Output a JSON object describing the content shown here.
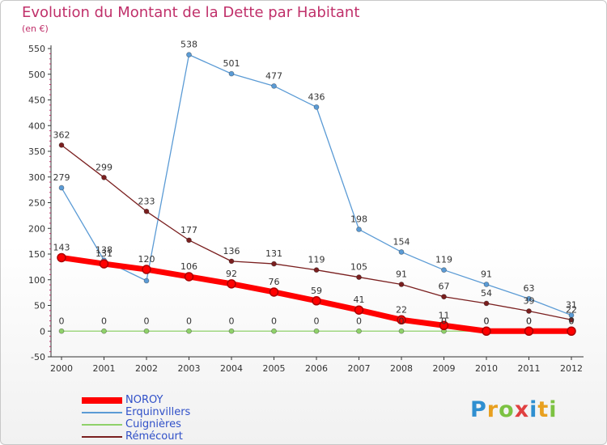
{
  "title": "Evolution du Montant de la Dette par Habitant",
  "unit_label": "(en €)",
  "brand": {
    "text": "Proxiti",
    "colors": [
      "#2f8fd0",
      "#e8a020",
      "#7cc242",
      "#e04040",
      "#2f8fd0",
      "#e8a020",
      "#7cc242"
    ]
  },
  "chart_data": {
    "type": "line",
    "x": [
      "2000",
      "2001",
      "2002",
      "2003",
      "2004",
      "2005",
      "2006",
      "2007",
      "2008",
      "2009",
      "2010",
      "2011",
      "2012"
    ],
    "ylim": [
      -50,
      550
    ],
    "yticks": [
      "-50",
      "0",
      "50",
      "100",
      "150",
      "200",
      "250",
      "300",
      "350",
      "400",
      "450",
      "500",
      "550"
    ],
    "grid": false,
    "legend_position": "bottom-left",
    "series": [
      {
        "name": "NOROY",
        "color": "#ff0000",
        "values": [
          143,
          131,
          120,
          106,
          92,
          76,
          59,
          41,
          22,
          11,
          0,
          0,
          0
        ],
        "labels": [
          "143",
          "131",
          "120",
          "106",
          "92",
          "76",
          "59",
          "41",
          "22",
          "11",
          "0",
          "0",
          "0"
        ]
      },
      {
        "name": "Erquinvillers",
        "color": "#5b9bd5",
        "values": [
          279,
          138,
          98,
          538,
          501,
          477,
          436,
          198,
          154,
          119,
          91,
          63,
          31
        ],
        "labels": [
          "279",
          "138",
          "",
          "538",
          "501",
          "477",
          "436",
          "198",
          "154",
          "119",
          "91",
          "63",
          "31"
        ]
      },
      {
        "name": "Cuignières",
        "color": "#8fd16a",
        "values": [
          0,
          0,
          0,
          0,
          0,
          0,
          0,
          0,
          0,
          0,
          0,
          0,
          0
        ],
        "labels": [
          "0",
          "0",
          "0",
          "0",
          "0",
          "0",
          "0",
          "0",
          "0",
          "0",
          "0",
          "0",
          "0"
        ]
      },
      {
        "name": "Rémécourt",
        "color": "#7a1f1f",
        "values": [
          362,
          299,
          233,
          177,
          136,
          131,
          119,
          105,
          91,
          67,
          54,
          39,
          22
        ],
        "labels": [
          "362",
          "299",
          "233",
          "177",
          "136",
          "131",
          "119",
          "105",
          "91",
          "67",
          "54",
          "39",
          "22"
        ]
      }
    ]
  }
}
